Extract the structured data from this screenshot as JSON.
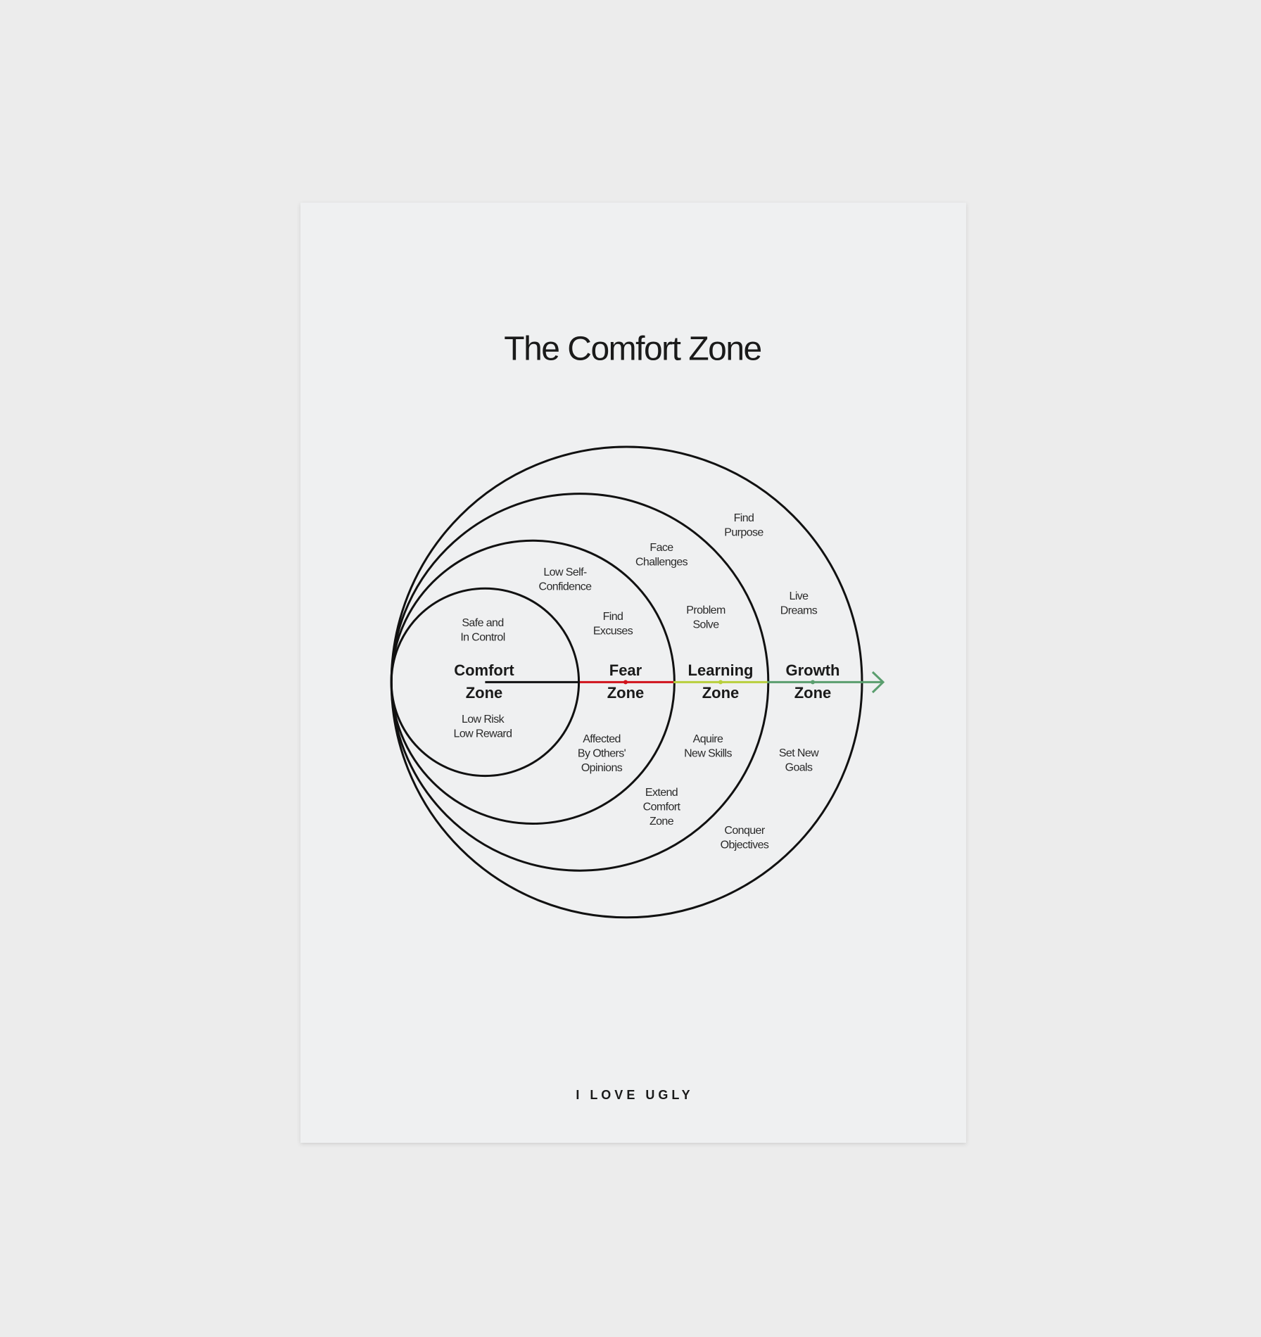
{
  "title": "The Comfort Zone",
  "zones": [
    {
      "lines": [
        "Comfort",
        "Zone"
      ]
    },
    {
      "lines": [
        "Fear",
        "Zone"
      ]
    },
    {
      "lines": [
        "Learning",
        "Zone"
      ]
    },
    {
      "lines": [
        "Growth",
        "Zone"
      ]
    }
  ],
  "notes": [
    {
      "lines": [
        "Safe and",
        "In Control"
      ]
    },
    {
      "lines": [
        "Low Risk",
        "Low Reward"
      ]
    },
    {
      "lines": [
        "Low Self-",
        "Confidence"
      ]
    },
    {
      "lines": [
        "Find",
        "Excuses"
      ]
    },
    {
      "lines": [
        "Affected",
        "By Others'",
        "Opinions"
      ]
    },
    {
      "lines": [
        "Face",
        "Challenges"
      ]
    },
    {
      "lines": [
        "Problem",
        "Solve"
      ]
    },
    {
      "lines": [
        "Aquire",
        "New Skills"
      ]
    },
    {
      "lines": [
        "Extend",
        "Comfort",
        "Zone"
      ]
    },
    {
      "lines": [
        "Find",
        "Purpose"
      ]
    },
    {
      "lines": [
        "Live",
        "Dreams"
      ]
    },
    {
      "lines": [
        "Set New",
        "Goals"
      ]
    },
    {
      "lines": [
        "Conquer",
        "Objectives"
      ]
    }
  ],
  "brand": "I LOVE UGLY"
}
